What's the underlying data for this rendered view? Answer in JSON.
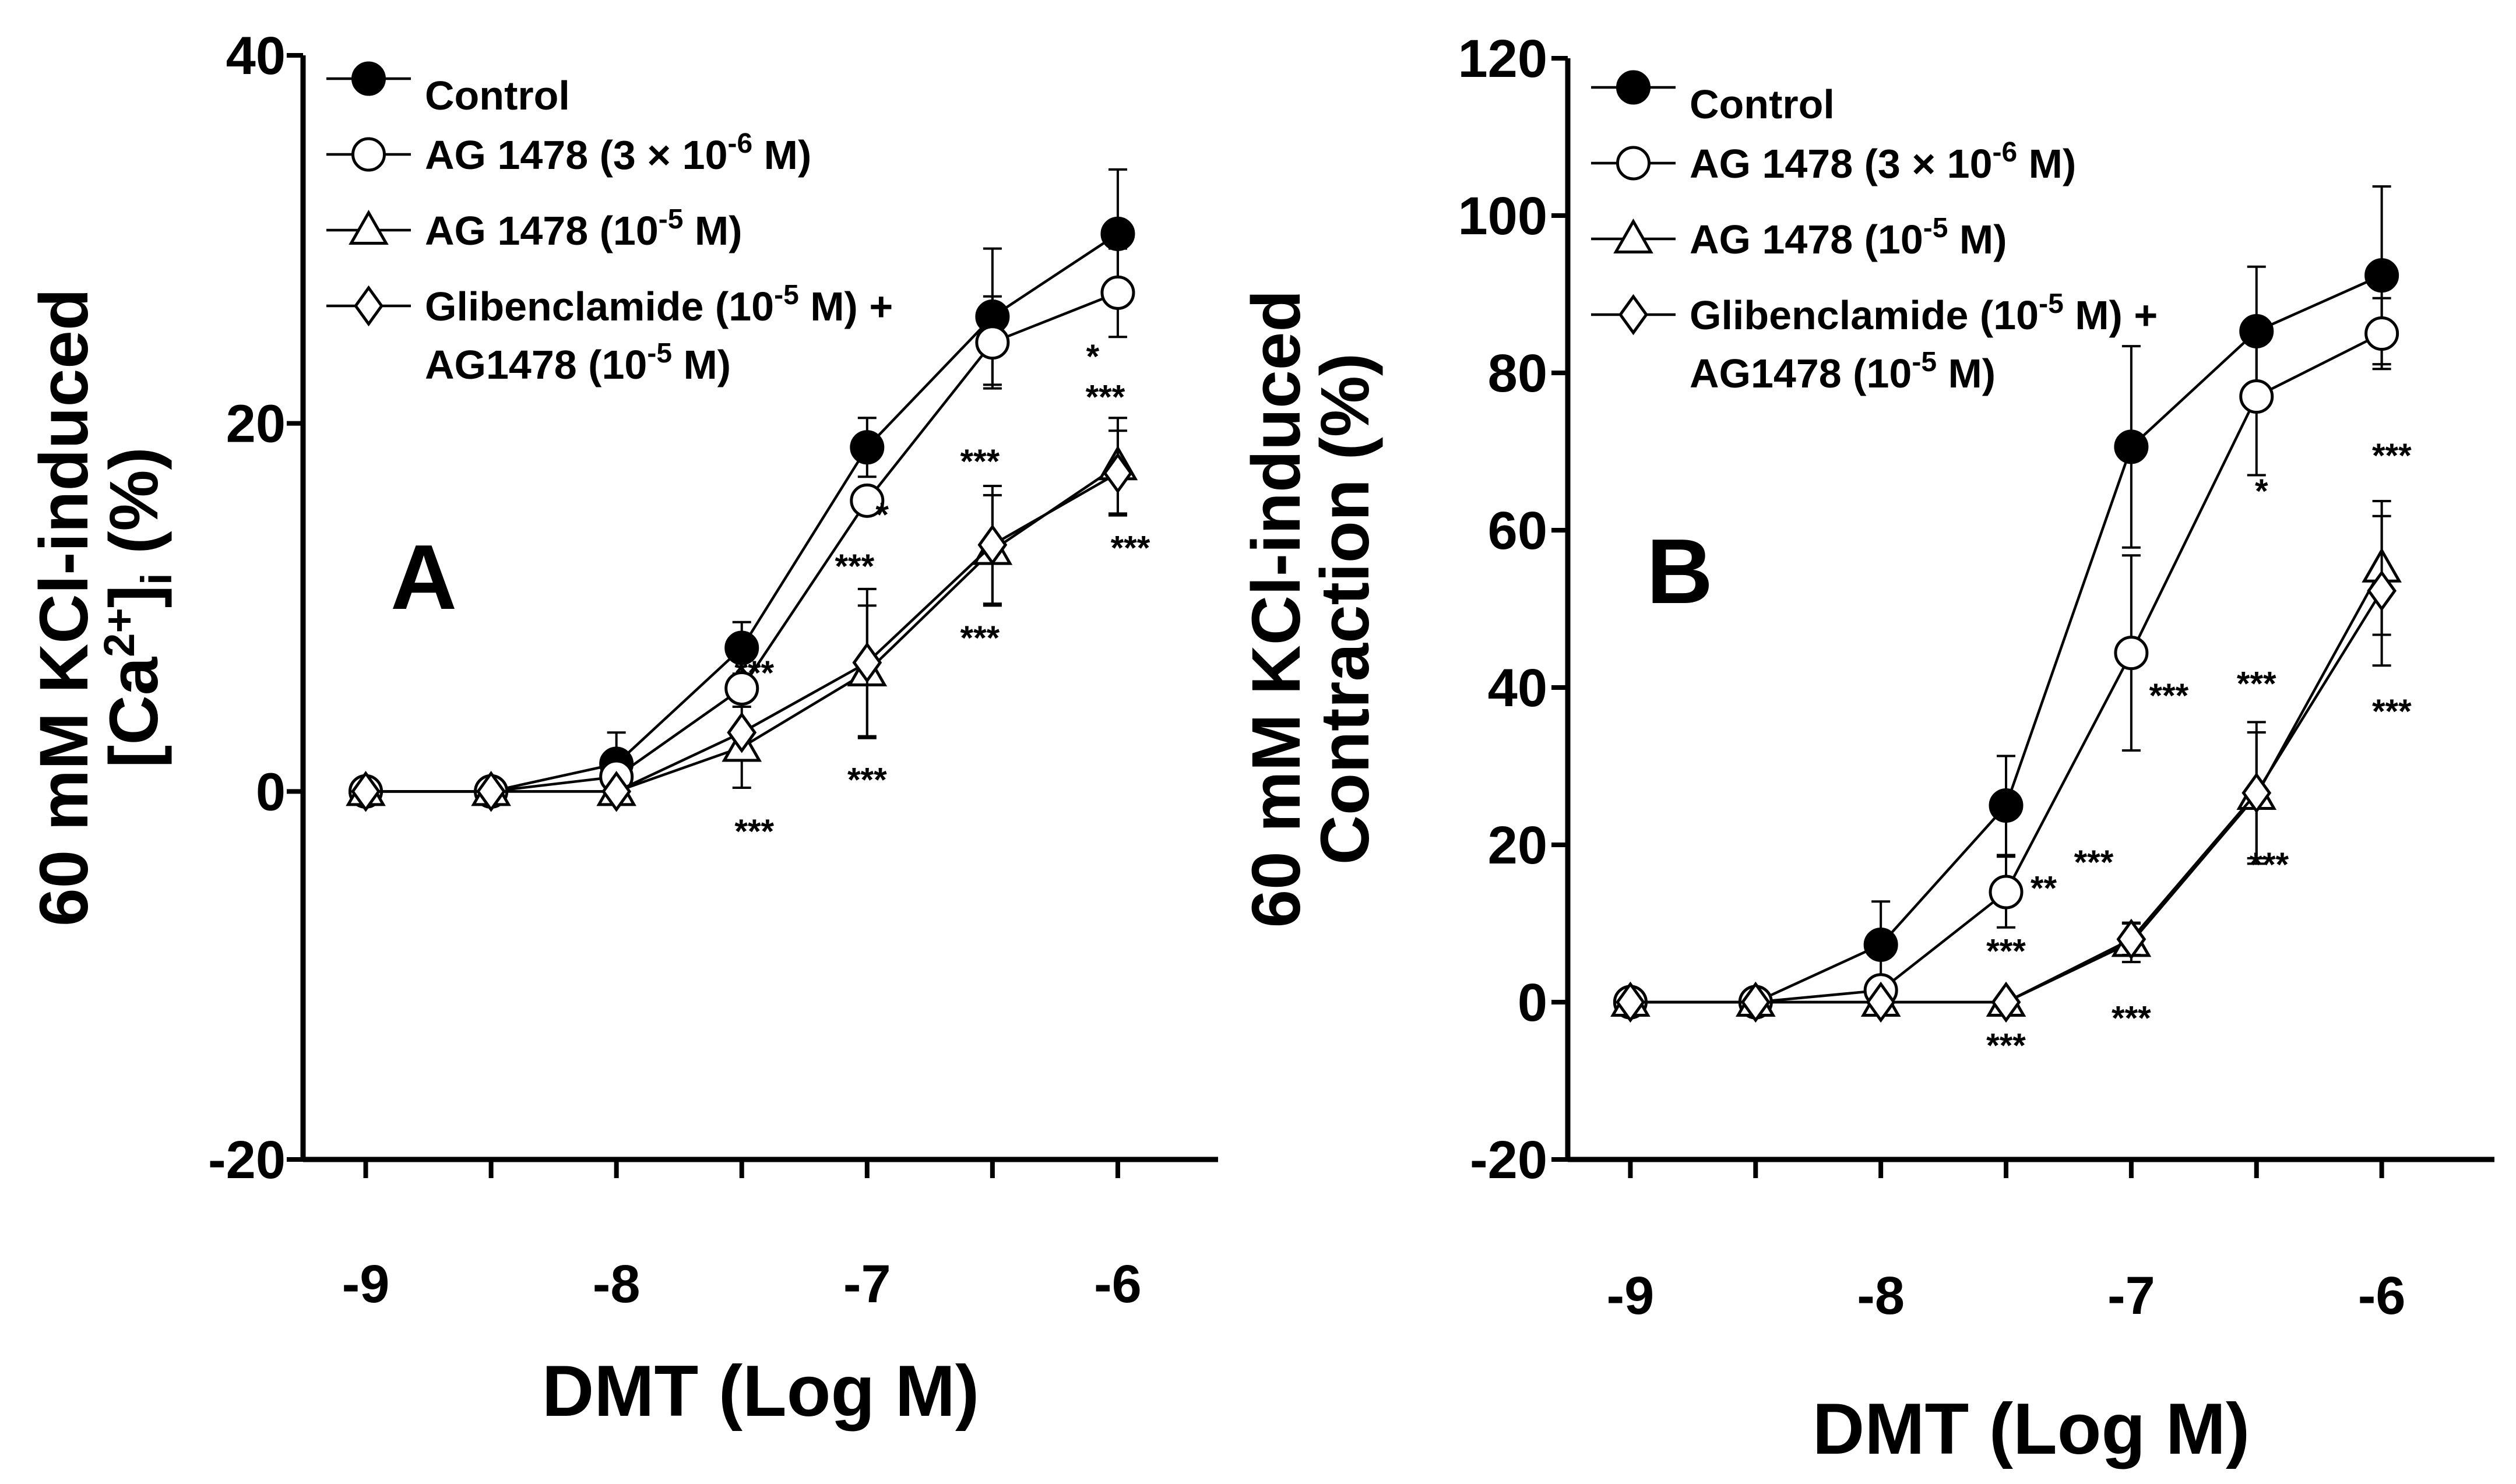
{
  "chart_data": [
    {
      "type": "line",
      "panel_label": "A",
      "xlabel": "DMT (Log M)",
      "ylabel_lines": [
        "60 mM KCl-induced",
        "[Ca",
        "2+",
        "]",
        "i",
        " (%)"
      ],
      "x_tick_labels": [
        "-9",
        "-8",
        "-7",
        "-6"
      ],
      "x_ticks": [
        -9,
        -8,
        -7,
        -6
      ],
      "y_tick_labels": [
        "-20",
        "0",
        "20",
        "40"
      ],
      "y_ticks": [
        -20,
        0,
        20,
        40
      ],
      "xlim": [
        -9.25,
        -5.6
      ],
      "ylim": [
        -20,
        40
      ],
      "x": [
        -9,
        -8.5,
        -8,
        -7.5,
        -7,
        -6.5,
        -6
      ],
      "series": [
        {
          "name": "Control",
          "marker": "filled-circle",
          "values": [
            0,
            0,
            1.5,
            7.8,
            18.7,
            25.8,
            30.3
          ],
          "errors": [
            0,
            0,
            1.7,
            1.4,
            1.6,
            3.7,
            3.5
          ]
        },
        {
          "name": "AG 1478 (3 × 10-6 M)",
          "marker": "open-circle",
          "values": [
            0,
            0,
            0.8,
            5.6,
            15.8,
            24.4,
            27.1
          ],
          "errors": [
            0,
            0,
            0,
            0,
            0,
            2.5,
            2.4
          ]
        },
        {
          "name": "AG 1478 (10-5 M)",
          "marker": "open-triangle",
          "values": [
            0,
            0,
            0,
            2.4,
            6.5,
            13.1,
            17.7
          ],
          "errors": [
            0,
            0,
            0,
            2.2,
            3.6,
            3.0,
            2.6
          ]
        },
        {
          "name": "Glibenclamide (10-5 M) + AG1478 (10-5 M)",
          "marker": "open-diamond",
          "values": [
            0,
            0,
            0,
            3.2,
            7.0,
            13.4,
            17.3
          ],
          "errors": [
            0,
            0,
            0,
            0,
            4.0,
            3.2,
            2.3
          ]
        }
      ],
      "annotations": [
        {
          "text": "***",
          "x": -7.45,
          "y": 5.8
        },
        {
          "text": "***",
          "x": -7.45,
          "y": -2.8
        },
        {
          "text": "*",
          "x": -6.94,
          "y": 14.4
        },
        {
          "text": "***",
          "x": -7.05,
          "y": 11.6
        },
        {
          "text": "***",
          "x": -7.0,
          "y": 0.0
        },
        {
          "text": "***",
          "x": -6.55,
          "y": 17.3
        },
        {
          "text": "***",
          "x": -6.55,
          "y": 7.7
        },
        {
          "text": "*",
          "x": -6.1,
          "y": 23.0
        },
        {
          "text": "***",
          "x": -6.05,
          "y": 20.8
        },
        {
          "text": "***",
          "x": -5.95,
          "y": 12.6
        }
      ],
      "legend": {
        "position": "top-left",
        "entries": [
          {
            "label_parts": [
              "Control"
            ],
            "marker": "filled-circle"
          },
          {
            "label_parts": [
              "AG 1478 (3 × 10",
              "-6",
              " M)"
            ],
            "marker": "open-circle"
          },
          {
            "label_parts": [
              "AG 1478 (10",
              "-5",
              " M)"
            ],
            "marker": "open-triangle"
          },
          {
            "label_parts": [
              "Glibenclamide (10",
              "-5",
              " M) +"
            ],
            "label_line2_parts": [
              "AG1478 (10",
              "-5",
              " M)"
            ],
            "marker": "open-diamond"
          }
        ]
      }
    },
    {
      "type": "line",
      "panel_label": "B",
      "xlabel": "DMT (Log M)",
      "ylabel_lines": [
        "60 mM KCl-induced",
        "Contraction (%)"
      ],
      "x_tick_labels": [
        "-9",
        "-8",
        "-7",
        "-6"
      ],
      "x_ticks": [
        -9,
        -8,
        -7,
        -6
      ],
      "y_tick_labels": [
        "-20",
        "0",
        "20",
        "40",
        "60",
        "80",
        "100",
        "120"
      ],
      "y_ticks": [
        -20,
        0,
        20,
        40,
        60,
        80,
        100,
        120
      ],
      "xlim": [
        -9.25,
        -5.55
      ],
      "ylim": [
        -20,
        120
      ],
      "x": [
        -9,
        -8.5,
        -8,
        -7.5,
        -7,
        -6.5,
        -6
      ],
      "series": [
        {
          "name": "Control",
          "marker": "filled-circle",
          "values": [
            0,
            0,
            7.3,
            25.0,
            70.6,
            85.3,
            92.4
          ],
          "errors": [
            0,
            0,
            5.5,
            6.3,
            12.8,
            8.2,
            11.3
          ]
        },
        {
          "name": "AG 1478 (3 × 10-6 M)",
          "marker": "open-circle",
          "values": [
            0,
            0,
            1.5,
            14.0,
            44.4,
            77.0,
            85.0
          ],
          "errors": [
            0,
            0,
            0,
            4.5,
            12.4,
            10.0,
            4.5
          ]
        },
        {
          "name": "AG 1478 (10-5 M)",
          "marker": "open-triangle",
          "values": [
            0,
            0,
            0,
            0,
            7.6,
            26.3,
            55.2
          ],
          "errors": [
            0,
            0,
            0,
            0,
            2.5,
            8.0,
            8.5
          ]
        },
        {
          "name": "Glibenclamide (10-5 M) + AG1478 (10-5 M)",
          "marker": "open-diamond",
          "values": [
            0,
            0,
            0,
            0,
            8.0,
            26.6,
            52.3
          ],
          "errors": [
            0,
            0,
            0,
            0,
            2.0,
            9.0,
            9.5
          ]
        }
      ],
      "annotations": [
        {
          "text": "**",
          "x": -7.35,
          "y": 13.0
        },
        {
          "text": "***",
          "x": -7.5,
          "y": 5.0
        },
        {
          "text": "***",
          "x": -7.5,
          "y": -7.0
        },
        {
          "text": "***",
          "x": -7.15,
          "y": 16.3
        },
        {
          "text": "***",
          "x": -6.85,
          "y": 37.5
        },
        {
          "text": "***",
          "x": -7.0,
          "y": -3.5
        },
        {
          "text": "*",
          "x": -6.48,
          "y": 63.5
        },
        {
          "text": "***",
          "x": -6.5,
          "y": 39.0
        },
        {
          "text": "***",
          "x": -6.45,
          "y": 16.0
        },
        {
          "text": "***",
          "x": -5.96,
          "y": 68.0
        },
        {
          "text": "***",
          "x": -5.96,
          "y": 35.5
        }
      ],
      "legend": {
        "position": "top-left",
        "entries": [
          {
            "label_parts": [
              "Control"
            ],
            "marker": "filled-circle"
          },
          {
            "label_parts": [
              "AG 1478 (3 × 10",
              "-6",
              " M)"
            ],
            "marker": "open-circle"
          },
          {
            "label_parts": [
              "AG 1478 (10",
              "-5",
              " M)"
            ],
            "marker": "open-triangle"
          },
          {
            "label_parts": [
              "Glibenclamide (10",
              "-5",
              " M) +"
            ],
            "label_line2_parts": [
              "AG1478 (10",
              "-5",
              " M)"
            ],
            "marker": "open-diamond"
          }
        ]
      }
    }
  ]
}
